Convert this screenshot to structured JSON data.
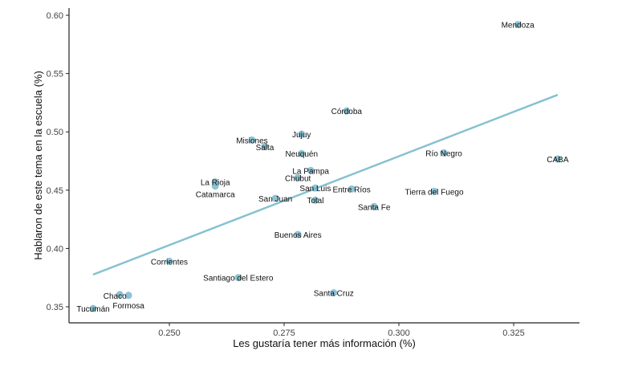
{
  "chart_data": {
    "type": "scatter",
    "xlabel": "Les gustaría tener más información (%)",
    "ylabel": "Hablaron de este tema en la escuela (%)",
    "xlim": [
      0.2305,
      0.3385
    ],
    "ylim": [
      0.338,
      0.608
    ],
    "x_ticks": [
      0.25,
      0.275,
      0.3,
      0.325
    ],
    "x_tick_labels": [
      "0.250",
      "0.275",
      "0.300",
      "0.325"
    ],
    "y_ticks": [
      0.35,
      0.4,
      0.45,
      0.5,
      0.55,
      0.6
    ],
    "y_tick_labels": [
      "0.35",
      "0.40",
      "0.45",
      "0.50",
      "0.55",
      "0.60"
    ],
    "grid": false,
    "colors": {
      "points": "#7ab8cc",
      "trend_line": "#86c1d1"
    },
    "trend_line": {
      "x": [
        0.2334,
        0.3346
      ],
      "y": [
        0.3776,
        0.5318
      ]
    },
    "points": [
      {
        "label": "Mendoza",
        "x": 0.3259,
        "y": 0.592
      },
      {
        "label": "CABA",
        "x": 0.3346,
        "y": 0.4767
      },
      {
        "label": "Córdoba",
        "x": 0.2886,
        "y": 0.5179
      },
      {
        "label": "Jujuy",
        "x": 0.2788,
        "y": 0.498
      },
      {
        "label": "Misiones",
        "x": 0.268,
        "y": 0.493
      },
      {
        "label": "Salta",
        "x": 0.2708,
        "y": 0.4876
      },
      {
        "label": "Neuquén",
        "x": 0.2788,
        "y": 0.4814
      },
      {
        "label": "Río Negro",
        "x": 0.3098,
        "y": 0.482
      },
      {
        "label": "La Pampa",
        "x": 0.2808,
        "y": 0.4669
      },
      {
        "label": "Chubut",
        "x": 0.278,
        "y": 0.4607
      },
      {
        "label": "La Rioja",
        "x": 0.26,
        "y": 0.457
      },
      {
        "label": "Catamarca",
        "x": 0.26,
        "y": 0.4535
      },
      {
        "label": "San Luis",
        "x": 0.2818,
        "y": 0.4518
      },
      {
        "label": "Entre Ríos",
        "x": 0.2897,
        "y": 0.451
      },
      {
        "label": "Tierra del Fuego",
        "x": 0.3077,
        "y": 0.449
      },
      {
        "label": "San Juan",
        "x": 0.2731,
        "y": 0.443
      },
      {
        "label": "Total",
        "x": 0.2818,
        "y": 0.4415
      },
      {
        "label": "Santa Fe",
        "x": 0.2946,
        "y": 0.4359
      },
      {
        "label": "Buenos Aires",
        "x": 0.278,
        "y": 0.412
      },
      {
        "label": "Corrientes",
        "x": 0.25,
        "y": 0.389
      },
      {
        "label": "Santiago del Estero",
        "x": 0.265,
        "y": 0.375
      },
      {
        "label": "Santa Cruz",
        "x": 0.2858,
        "y": 0.362
      },
      {
        "label": "Chaco",
        "x": 0.2392,
        "y": 0.3605
      },
      {
        "label": "Formosa",
        "x": 0.2411,
        "y": 0.3598
      },
      {
        "label": "Tucumán",
        "x": 0.2334,
        "y": 0.3485
      }
    ]
  }
}
